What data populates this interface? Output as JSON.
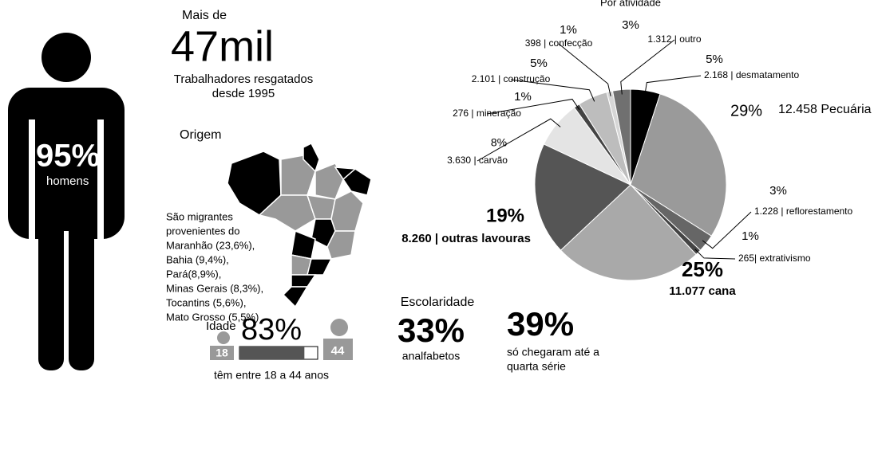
{
  "header": {
    "pre": "Mais de",
    "big": "47mil",
    "sub1": "Trabalhadores resgatados",
    "sub2": "desde 1995"
  },
  "gender": {
    "value": "95%",
    "label": "homens"
  },
  "origin": {
    "title": "Origem",
    "lines": [
      "São migrantes",
      "provenientes do",
      "Maranhão (23,6%),",
      "Bahia (9,4%),",
      "Pará(8,9%),",
      "Minas Gerais (8,3%),",
      "Tocantins (5,6%),",
      "Mato Grosso (5,5%)"
    ]
  },
  "chart_data": {
    "type": "pie",
    "title": "Por atividade",
    "categories": [
      "2.168 | desmatamento",
      "12.458 Pecuária",
      "1.228 | reflorestamento",
      "265| extrativismo",
      "11.077 cana",
      "8.260 | outras lavouras",
      "3.630 | carvão",
      "276 | mineração",
      "2.101 | construção",
      "398 | confecção",
      "1.312 | outro"
    ],
    "values": [
      5,
      29,
      3,
      1,
      25,
      19,
      8,
      1,
      5,
      1,
      3
    ],
    "value_labels": [
      "5%",
      "29%",
      "3%",
      "1%",
      "25%",
      "19%",
      "8%",
      "1%",
      "5%",
      "1%",
      "3%"
    ],
    "colors": [
      "#000000",
      "#9a9a9a",
      "#666666",
      "#444444",
      "#a9a9a9",
      "#555555",
      "#e4e4e4",
      "#444444",
      "#bdbdbd",
      "#d6d6d6",
      "#707070"
    ]
  },
  "age": {
    "title": "Idade",
    "value": 83,
    "value_label": "83%",
    "xlim": [
      0,
      100
    ],
    "min": "18",
    "max": "44",
    "caption": "têm entre 18 a 44 anos"
  },
  "schooling": {
    "title": "Escolaridade",
    "items": [
      {
        "value": "33%",
        "lines": [
          "analfabetos"
        ]
      },
      {
        "value": "39%",
        "lines": [
          "só chegaram até a",
          "quarta série"
        ]
      }
    ]
  }
}
